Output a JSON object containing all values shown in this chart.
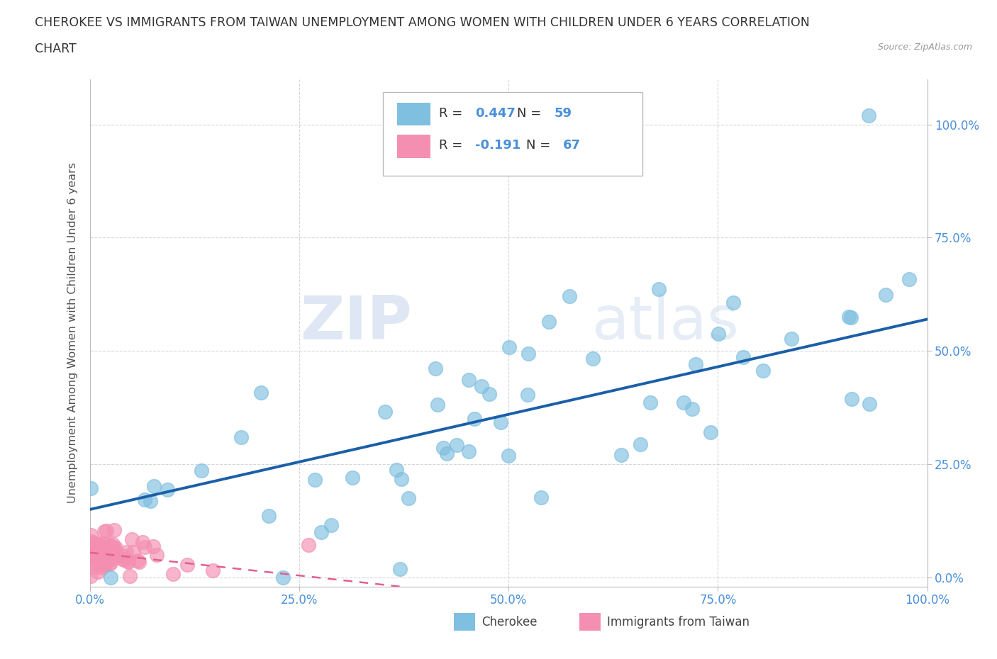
{
  "title_line1": "CHEROKEE VS IMMIGRANTS FROM TAIWAN UNEMPLOYMENT AMONG WOMEN WITH CHILDREN UNDER 6 YEARS CORRELATION",
  "title_line2": "CHART",
  "source": "Source: ZipAtlas.com",
  "ylabel": "Unemployment Among Women with Children Under 6 years",
  "xlim": [
    0.0,
    1.0
  ],
  "ylim": [
    -0.02,
    1.1
  ],
  "xticks": [
    0.0,
    0.25,
    0.5,
    0.75,
    1.0
  ],
  "yticks": [
    0.0,
    0.25,
    0.5,
    0.75,
    1.0
  ],
  "xticklabels": [
    "0.0%",
    "25.0%",
    "50.0%",
    "75.0%",
    "100.0%"
  ],
  "yticklabels": [
    "0.0%",
    "25.0%",
    "50.0%",
    "75.0%",
    "100.0%"
  ],
  "cherokee_color": "#7fbfdf",
  "cherokee_edge_color": "#7fbfdf",
  "taiwan_color": "#f48fb1",
  "taiwan_edge_color": "#f48fb1",
  "line_blue": "#1a5fa8",
  "line_pink": "#e06090",
  "cherokee_R": 0.447,
  "cherokee_N": 59,
  "taiwan_R": -0.191,
  "taiwan_N": 67,
  "legend_label_cherokee": "Cherokee",
  "legend_label_taiwan": "Immigrants from Taiwan",
  "watermark_zip": "ZIP",
  "watermark_atlas": "atlas",
  "background_color": "#ffffff",
  "grid_color": "#cccccc",
  "tick_color": "#4a90d9",
  "title_color": "#333333",
  "ylabel_color": "#555555",
  "cherokee_line_start_x": 0.0,
  "cherokee_line_start_y": 0.15,
  "cherokee_line_end_x": 1.0,
  "cherokee_line_end_y": 0.57,
  "taiwan_line_start_x": 0.0,
  "taiwan_line_start_y": 0.055,
  "taiwan_line_end_x": 0.37,
  "taiwan_line_end_y": -0.02
}
